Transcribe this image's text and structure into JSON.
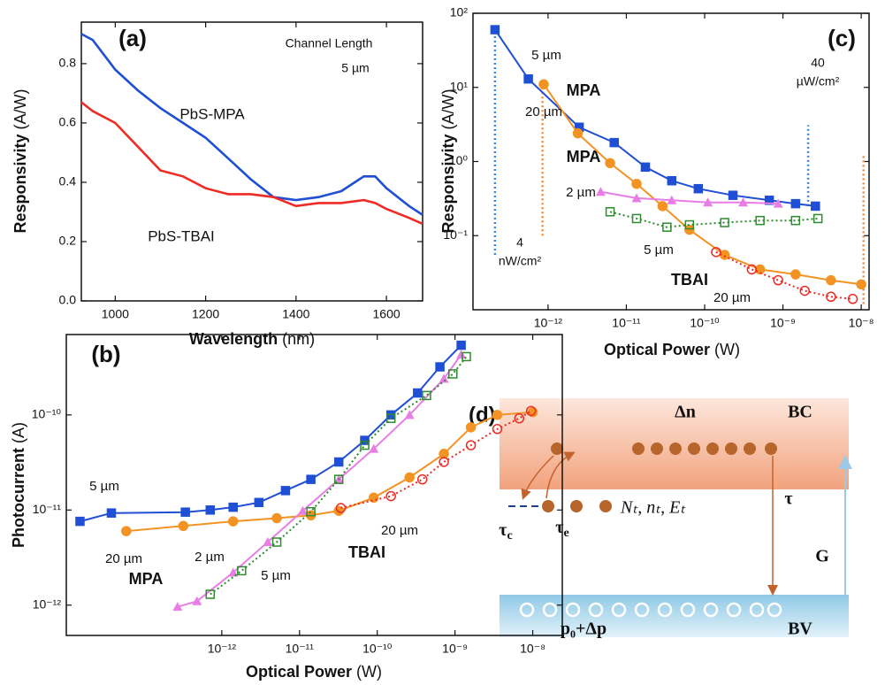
{
  "chart_data": [
    {
      "type": "line",
      "panel_label": "(a)",
      "annotations": [
        "Channel Length",
        "5 µm"
      ],
      "x_label": {
        "name": "Wavelength",
        "unit": "(nm)"
      },
      "y_label": {
        "name": "Responsivity",
        "unit": "(A/W)"
      },
      "x": [
        925,
        950,
        1000,
        1050,
        1100,
        1150,
        1200,
        1250,
        1300,
        1350,
        1400,
        1450,
        1500,
        1550,
        1575,
        1600,
        1650,
        1680
      ],
      "series": [
        {
          "name": "PbS-MPA",
          "color": "#1f4fd4",
          "values": [
            0.9,
            0.88,
            0.78,
            0.71,
            0.65,
            0.6,
            0.55,
            0.48,
            0.41,
            0.35,
            0.34,
            0.35,
            0.37,
            0.42,
            0.42,
            0.38,
            0.32,
            0.29
          ]
        },
        {
          "name": "PbS-TBAI",
          "color": "#ee2b24",
          "values": [
            0.67,
            0.64,
            0.6,
            0.52,
            0.44,
            0.42,
            0.38,
            0.36,
            0.36,
            0.35,
            0.32,
            0.33,
            0.33,
            0.34,
            0.33,
            0.31,
            0.28,
            0.26
          ]
        }
      ],
      "xlim": [
        925,
        1680
      ],
      "ylim": [
        0,
        0.94
      ],
      "xticks": [
        1000,
        1200,
        1400,
        1600
      ],
      "yticks": [
        {
          "value": 0,
          "label": "0.0"
        },
        0.2,
        0.4,
        0.6,
        0.8
      ]
    },
    {
      "type": "line",
      "panel_label": "(b)",
      "xscale": "log",
      "yscale": "log",
      "annotations": [
        "MPA",
        "TBAI"
      ],
      "x_label": {
        "name": "Optical Power",
        "unit": "(W)"
      },
      "y_label": {
        "name": "Photocurrent",
        "unit": "(A)"
      },
      "series": [
        {
          "name": "5 µm",
          "color": "#1f4fd4",
          "marker": "square",
          "line_style": "solid",
          "x": [
            1.5e-14,
            3.8e-14,
            3.4e-13,
            7.1e-13,
            1.4e-12,
            3e-12,
            6.6e-12,
            1.4e-11,
            3.2e-11,
            6.9e-11,
            1.5e-10,
            3.3e-10,
            6.4e-10,
            1.2e-09
          ],
          "values": [
            7.6e-12,
            9.3e-12,
            9.5e-12,
            1e-11,
            1.07e-11,
            1.2e-11,
            1.6e-11,
            2.1e-11,
            3.2e-11,
            5.4e-11,
            1e-10,
            1.7e-10,
            3.2e-10,
            5.4e-10
          ]
        },
        {
          "name": "20 µm",
          "color": "#f39323",
          "marker": "circle",
          "line_style": "solid",
          "x": [
            5.9e-14,
            3.2e-13,
            1.4e-12,
            5.1e-12,
            1.4e-11,
            3.2e-11,
            9e-11,
            2.6e-10,
            7.2e-10,
            1.6e-09,
            3.5e-09,
            1e-08
          ],
          "values": [
            6e-12,
            6.8e-12,
            7.6e-12,
            8.2e-12,
            8.8e-12,
            9.8e-12,
            1.35e-11,
            2.2e-11,
            3.9e-11,
            7.4e-11,
            1e-10,
            1.07e-10
          ]
        },
        {
          "name": "2 µm",
          "color": "#e97de6",
          "marker": "triangle",
          "line_style": "solid",
          "x": [
            2.7e-13,
            4.8e-13,
            1.4e-12,
            3.9e-12,
            1.1e-11,
            3.2e-11,
            9e-11,
            2.6e-10,
            7.2e-10,
            1.2e-09
          ],
          "values": [
            9.6e-13,
            1.1e-12,
            2.2e-12,
            4.6e-12,
            9.8e-12,
            2.1e-11,
            4.4e-11,
            1e-10,
            2.4e-10,
            4.3e-10
          ]
        },
        {
          "name": "5 µm",
          "color": "#2d8b2d",
          "marker": "open-square",
          "line_style": "dotted",
          "x": [
            7.1e-13,
            1.8e-12,
            5.1e-12,
            1.4e-11,
            3.2e-11,
            6.9e-11,
            1.5e-10,
            4.3e-10,
            9.4e-10,
            1.4e-09
          ],
          "values": [
            1.3e-12,
            2.3e-12,
            4.6e-12,
            9.6e-12,
            2.1e-11,
            4.8e-11,
            9.2e-11,
            1.6e-10,
            2.7e-10,
            4.1e-10
          ]
        },
        {
          "name": "20 µm",
          "color": "#ee2b24",
          "marker": "open-circle",
          "line_style": "dotted",
          "x": [
            3.4e-11,
            1.5e-10,
            3.8e-10,
            7.2e-10,
            1.6e-09,
            3.5e-09,
            6.7e-09,
            9.5e-09
          ],
          "values": [
            1.05e-11,
            1.4e-11,
            2.1e-11,
            3.2e-11,
            4.8e-11,
            7.1e-11,
            9.2e-11,
            1.1e-10
          ]
        }
      ],
      "xlim": [
        1e-14,
        2.4e-08
      ],
      "ylim": [
        4.8e-13,
        7e-10
      ],
      "xticks": [
        {
          "value": 1e-12,
          "label": "10⁻¹²"
        },
        {
          "value": 1e-11,
          "label": "10⁻¹¹"
        },
        {
          "value": 1e-10,
          "label": "10⁻¹⁰"
        },
        {
          "value": 1e-09,
          "label": "10⁻⁹"
        },
        {
          "value": 1e-08,
          "label": "10⁻⁸"
        }
      ],
      "yticks": [
        {
          "value": 1e-12,
          "label": "10⁻¹²"
        },
        {
          "value": 1e-11,
          "label": "10⁻¹¹"
        },
        {
          "value": 1e-10,
          "label": "10⁻¹⁰"
        }
      ]
    },
    {
      "type": "line",
      "panel_label": "(c)",
      "xscale": "log",
      "yscale": "log",
      "annotations": [
        "MPA",
        "MPA",
        "TBAI",
        "4",
        "nW/cm²",
        "40",
        "µW/cm²"
      ],
      "x_label": {
        "name": "Optical Power",
        "unit": "(W)"
      },
      "y_label": {
        "name": "Responsivity",
        "unit": "(A/W)"
      },
      "series": [
        {
          "name": "5 µm",
          "color": "#1f4fd4",
          "marker": "square",
          "line_style": "solid",
          "x": [
            2.1e-13,
            5.6e-13,
            2.5e-12,
            7e-12,
            1.75e-11,
            3.8e-11,
            8.3e-11,
            2.3e-10,
            6.7e-10,
            1.45e-09,
            2.6e-09
          ],
          "values": [
            60,
            13,
            2.9,
            1.8,
            0.84,
            0.55,
            0.43,
            0.35,
            0.3,
            0.27,
            0.25
          ]
        },
        {
          "name": "20 µm",
          "color": "#f39323",
          "marker": "circle",
          "line_style": "solid",
          "x": [
            8.8e-13,
            2.4e-12,
            6.2e-12,
            1.35e-11,
            2.9e-11,
            6.4e-11,
            1.8e-10,
            5.1e-10,
            1.45e-09,
            4.1e-09,
            1e-08
          ],
          "values": [
            11,
            2.4,
            0.95,
            0.5,
            0.25,
            0.12,
            0.055,
            0.035,
            0.03,
            0.025,
            0.022
          ]
        },
        {
          "name": "2 µm",
          "color": "#e97de6",
          "marker": "triangle",
          "line_style": "solid",
          "x": [
            4.7e-12,
            1.35e-11,
            3.8e-11,
            1.1e-10,
            3.1e-10,
            8.7e-10
          ],
          "values": [
            0.39,
            0.32,
            0.3,
            0.28,
            0.28,
            0.27
          ]
        },
        {
          "name": "5 µm",
          "color": "#2d8b2d",
          "marker": "open-square",
          "line_style": "dotted",
          "x": [
            6.2e-12,
            1.35e-11,
            3.3e-11,
            6.4e-11,
            1.8e-10,
            5.1e-10,
            1.45e-09,
            2.8e-09
          ],
          "values": [
            0.21,
            0.17,
            0.13,
            0.14,
            0.15,
            0.16,
            0.16,
            0.17
          ]
        },
        {
          "name": "20 µm",
          "color": "#ee2b24",
          "marker": "open-circle",
          "line_style": "dotted",
          "x": [
            1.4e-10,
            4e-10,
            8.7e-10,
            1.9e-09,
            4.1e-09,
            7.8e-09
          ],
          "values": [
            0.06,
            0.035,
            0.025,
            0.018,
            0.015,
            0.014
          ]
        }
      ],
      "reference_lines": [
        {
          "x": 2.1e-13,
          "y": [
            0.055,
            60
          ],
          "color": "#3a86e0"
        },
        {
          "x": 8.5e-13,
          "y": [
            0.1,
            11
          ],
          "color": "#f08a3a"
        },
        {
          "x": 2.1e-09,
          "y": [
            0.25,
            3.1
          ],
          "color": "#3a86e0"
        },
        {
          "x": 1.07e-08,
          "y": [
            0.012,
            1.2
          ],
          "color": "#f08a3a"
        }
      ],
      "xlim": [
        1.1e-13,
        1.26e-08
      ],
      "ylim": [
        0.01,
        100
      ],
      "xticks": [
        {
          "value": 1e-12,
          "label": "10⁻¹²"
        },
        {
          "value": 1e-11,
          "label": "10⁻¹¹"
        },
        {
          "value": 1e-10,
          "label": "10⁻¹⁰"
        },
        {
          "value": 1e-09,
          "label": "10⁻⁹"
        },
        {
          "value": 1e-08,
          "label": "10⁻⁸"
        }
      ],
      "yticks": [
        {
          "value": 0.1,
          "label": "10⁻¹"
        },
        {
          "value": 1,
          "label": "10⁰"
        },
        {
          "value": 10,
          "label": "10¹"
        },
        {
          "value": 100,
          "label": "10²"
        }
      ]
    }
  ],
  "diagram": {
    "label": "(d)",
    "electrons": "Δn",
    "conduction_band": "BC",
    "capture_time": {
      "symbol": "τ",
      "subscript": "c"
    },
    "emission_time": {
      "symbol": "τ",
      "subscript": "e"
    },
    "trap_states": "Nₜ, nₜ, Eₜ",
    "recombination_time": "τ",
    "generation": "G",
    "holes": "p₀+Δp",
    "valence_band": "BV"
  }
}
